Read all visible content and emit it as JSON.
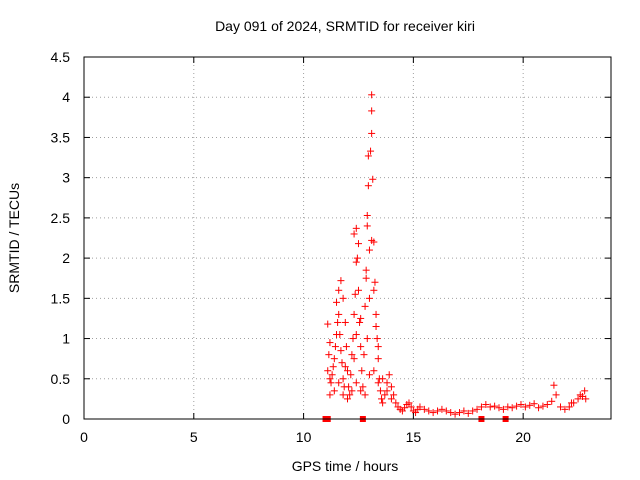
{
  "chart_data": {
    "type": "scatter",
    "title": "Day 091 of 2024, SRMTID for receiver kiri",
    "xlabel": "GPS time / hours",
    "ylabel": "SRMTID / TECUs",
    "xlim": [
      0,
      24
    ],
    "ylim": [
      0,
      4.5
    ],
    "x_ticks": [
      0,
      5,
      10,
      15,
      20
    ],
    "y_ticks": [
      0,
      0.5,
      1,
      1.5,
      2,
      2.5,
      3,
      3.5,
      4,
      4.5
    ],
    "x_tick_labels": [
      "0",
      "5",
      "10",
      "15",
      "20"
    ],
    "y_tick_labels": [
      "0",
      "0.5",
      "1",
      "1.5",
      "2",
      "2.5",
      "3",
      "3.5",
      "4",
      "4.5"
    ],
    "grid": true,
    "marker": "plus",
    "colors": {
      "points": "#ff0000",
      "accent": "#cc0000"
    },
    "series": [
      {
        "name": "SRMTID",
        "points": [
          [
            11.0,
            0.0
          ],
          [
            11.05,
            0.0
          ],
          [
            11.1,
            0.0
          ],
          [
            12.7,
            0.0
          ],
          [
            18.1,
            0.0
          ],
          [
            19.2,
            0.0
          ],
          [
            11.1,
            1.18
          ],
          [
            11.2,
            0.95
          ],
          [
            11.15,
            0.8
          ],
          [
            11.1,
            0.6
          ],
          [
            11.2,
            0.5
          ],
          [
            11.25,
            0.45
          ],
          [
            11.3,
            0.55
          ],
          [
            11.35,
            0.65
          ],
          [
            11.4,
            0.75
          ],
          [
            11.45,
            0.9
          ],
          [
            11.5,
            1.05
          ],
          [
            11.55,
            1.2
          ],
          [
            11.6,
            1.3
          ],
          [
            11.65,
            1.05
          ],
          [
            11.7,
            0.85
          ],
          [
            11.75,
            0.7
          ],
          [
            11.8,
            0.5
          ],
          [
            11.85,
            0.4
          ],
          [
            11.5,
            1.45
          ],
          [
            11.6,
            1.6
          ],
          [
            11.7,
            1.72
          ],
          [
            11.8,
            1.5
          ],
          [
            11.9,
            1.2
          ],
          [
            11.95,
            0.9
          ],
          [
            12.0,
            0.6
          ],
          [
            12.05,
            0.4
          ],
          [
            12.1,
            0.3
          ],
          [
            12.15,
            0.55
          ],
          [
            12.2,
            0.8
          ],
          [
            12.25,
            1.0
          ],
          [
            12.3,
            1.3
          ],
          [
            12.35,
            1.55
          ],
          [
            12.4,
            1.95
          ],
          [
            12.4,
            2.37
          ],
          [
            12.45,
            2.0
          ],
          [
            12.5,
            1.6
          ],
          [
            12.55,
            1.2
          ],
          [
            12.6,
            0.9
          ],
          [
            12.65,
            0.6
          ],
          [
            12.7,
            0.4
          ],
          [
            12.75,
            0.8
          ],
          [
            12.8,
            1.4
          ],
          [
            12.85,
            1.85
          ],
          [
            12.9,
            2.4
          ],
          [
            12.95,
            2.9
          ],
          [
            12.95,
            3.27
          ],
          [
            13.0,
            2.1
          ],
          [
            13.05,
            3.33
          ],
          [
            13.1,
            3.55
          ],
          [
            13.1,
            3.83
          ],
          [
            13.1,
            4.03
          ],
          [
            13.15,
            2.98
          ],
          [
            13.2,
            2.2
          ],
          [
            13.25,
            1.7
          ],
          [
            13.3,
            1.3
          ],
          [
            13.35,
            1.0
          ],
          [
            13.4,
            0.75
          ],
          [
            13.45,
            0.5
          ],
          [
            13.5,
            0.35
          ],
          [
            13.55,
            0.25
          ],
          [
            13.6,
            0.2
          ],
          [
            13.7,
            0.3
          ],
          [
            13.8,
            0.45
          ],
          [
            13.9,
            0.55
          ],
          [
            14.0,
            0.4
          ],
          [
            14.1,
            0.3
          ],
          [
            14.2,
            0.2
          ],
          [
            14.3,
            0.15
          ],
          [
            14.4,
            0.12
          ],
          [
            14.5,
            0.1
          ],
          [
            14.6,
            0.14
          ],
          [
            14.7,
            0.18
          ],
          [
            14.8,
            0.2
          ],
          [
            14.9,
            0.15
          ],
          [
            15.0,
            0.1
          ],
          [
            15.1,
            0.08
          ],
          [
            15.2,
            0.12
          ],
          [
            15.3,
            0.15
          ],
          [
            15.5,
            0.12
          ],
          [
            15.7,
            0.1
          ],
          [
            15.9,
            0.08
          ],
          [
            16.1,
            0.1
          ],
          [
            16.3,
            0.12
          ],
          [
            16.5,
            0.1
          ],
          [
            16.7,
            0.08
          ],
          [
            16.9,
            0.06
          ],
          [
            17.1,
            0.08
          ],
          [
            17.3,
            0.1
          ],
          [
            17.5,
            0.07
          ],
          [
            17.7,
            0.1
          ],
          [
            17.9,
            0.12
          ],
          [
            18.1,
            0.15
          ],
          [
            18.3,
            0.18
          ],
          [
            18.5,
            0.15
          ],
          [
            18.7,
            0.16
          ],
          [
            18.9,
            0.14
          ],
          [
            19.1,
            0.12
          ],
          [
            19.3,
            0.15
          ],
          [
            19.5,
            0.14
          ],
          [
            19.7,
            0.16
          ],
          [
            19.9,
            0.18
          ],
          [
            20.1,
            0.15
          ],
          [
            20.3,
            0.17
          ],
          [
            20.5,
            0.19
          ],
          [
            20.7,
            0.14
          ],
          [
            20.9,
            0.16
          ],
          [
            21.1,
            0.18
          ],
          [
            21.3,
            0.22
          ],
          [
            21.4,
            0.42
          ],
          [
            21.5,
            0.3
          ],
          [
            21.7,
            0.15
          ],
          [
            21.9,
            0.12
          ],
          [
            22.1,
            0.15
          ],
          [
            22.3,
            0.2
          ],
          [
            22.5,
            0.25
          ],
          [
            22.6,
            0.3
          ],
          [
            22.7,
            0.28
          ],
          [
            22.8,
            0.35
          ],
          [
            22.85,
            0.25
          ],
          [
            22.2,
            0.2
          ],
          [
            11.2,
            0.3
          ],
          [
            11.4,
            0.35
          ],
          [
            11.6,
            0.45
          ],
          [
            11.8,
            0.3
          ],
          [
            12.0,
            0.25
          ],
          [
            12.2,
            0.35
          ],
          [
            12.4,
            0.45
          ],
          [
            12.6,
            0.35
          ],
          [
            12.8,
            0.3
          ],
          [
            13.0,
            0.55
          ],
          [
            13.2,
            0.6
          ],
          [
            13.4,
            0.45
          ],
          [
            13.6,
            0.5
          ],
          [
            13.8,
            0.35
          ],
          [
            14.0,
            0.25
          ],
          [
            12.9,
            1.0
          ],
          [
            13.0,
            1.5
          ],
          [
            13.2,
            1.6
          ],
          [
            13.3,
            1.15
          ],
          [
            13.4,
            0.9
          ],
          [
            12.6,
            1.25
          ],
          [
            12.4,
            1.05
          ],
          [
            12.3,
            0.75
          ],
          [
            11.9,
            0.65
          ],
          [
            12.5,
            2.18
          ],
          [
            12.3,
            2.3
          ],
          [
            12.9,
            2.53
          ],
          [
            13.1,
            2.22
          ],
          [
            12.85,
            1.75
          ]
        ]
      }
    ]
  }
}
